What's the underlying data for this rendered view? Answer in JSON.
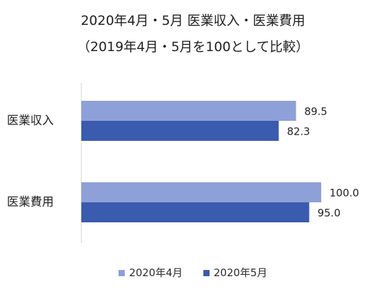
{
  "chart_data": {
    "type": "bar",
    "orientation": "horizontal",
    "title_line1": "2020年4月・5月 医業収入・医業費用",
    "title_line2": "（2019年4月・5月を100として比較）",
    "categories": [
      "医業収入",
      "医業費用"
    ],
    "series": [
      {
        "name": "2020年4月",
        "values": [
          89.5,
          100.0
        ],
        "labels": [
          "89.5",
          "100.0"
        ],
        "color": "#8EA0D8"
      },
      {
        "name": "2020年5月",
        "values": [
          82.3,
          95.0
        ],
        "labels": [
          "82.3",
          "95.0"
        ],
        "color": "#3A5BAE"
      }
    ],
    "xlim": [
      0,
      100
    ],
    "grid": false,
    "legend_position": "bottom-center"
  }
}
